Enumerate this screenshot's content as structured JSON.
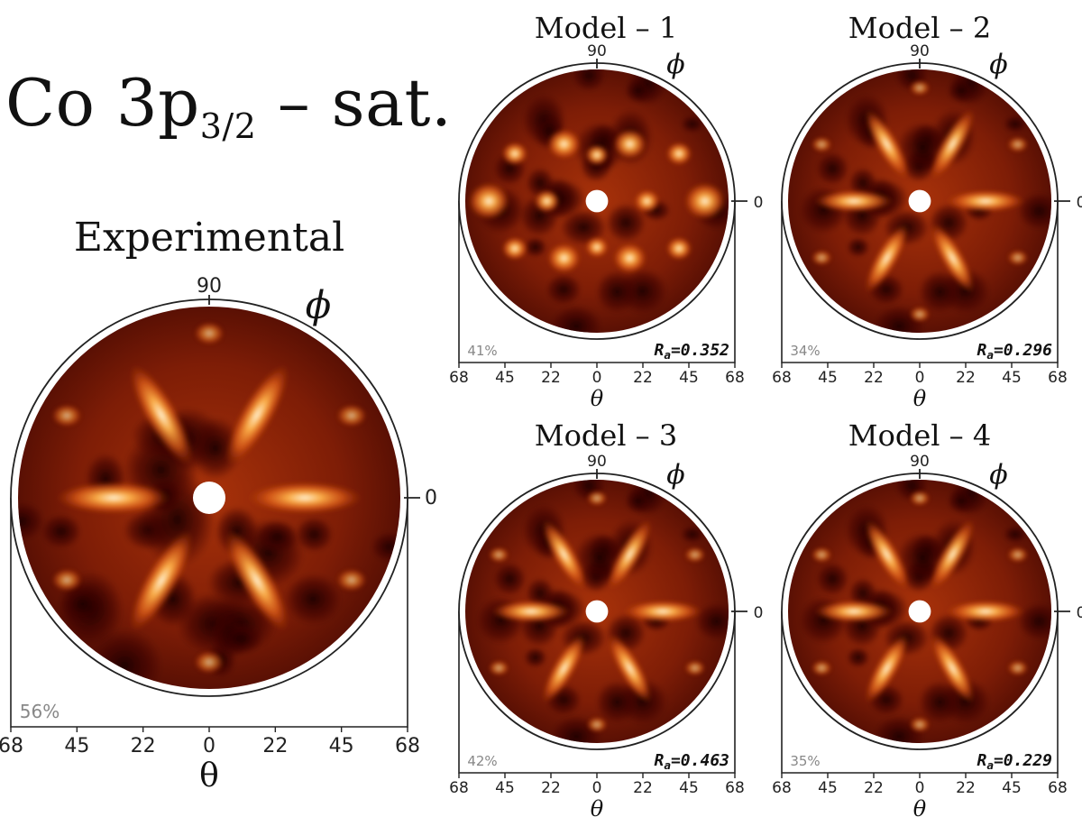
{
  "figure": {
    "title_main": "Co 3p",
    "title_sub": "3/2",
    "title_suffix": " – sat.",
    "phi_symbol": "ϕ",
    "theta_symbol": "θ",
    "angle_90": "90",
    "angle_0": "0",
    "theta_ticks": [
      "68",
      "45",
      "22",
      "0",
      "22",
      "45",
      "68"
    ],
    "colors": {
      "dark": "#2a0604",
      "mid": "#9c2a06",
      "bright": "#ff9a2a",
      "hot": "#fff6dc"
    }
  },
  "panels": [
    {
      "id": "experimental",
      "label": "Experimental",
      "percent": "56%",
      "r_label": "",
      "r_value": "",
      "pattern": "six-fold streaks"
    },
    {
      "id": "model1",
      "label": "Model – 1",
      "percent": "41%",
      "r_label": "R",
      "r_sub": "a",
      "r_value": "=0.352",
      "pattern": "spots"
    },
    {
      "id": "model2",
      "label": "Model – 2",
      "percent": "34%",
      "r_label": "R",
      "r_sub": "a",
      "r_value": "=0.296",
      "pattern": "six-fold streaks"
    },
    {
      "id": "model3",
      "label": "Model – 3",
      "percent": "42%",
      "r_label": "R",
      "r_sub": "a",
      "r_value": "=0.463",
      "pattern": "six-fold streaks"
    },
    {
      "id": "model4",
      "label": "Model – 4",
      "percent": "35%",
      "r_label": "R",
      "r_sub": "a",
      "r_value": "=0.229",
      "pattern": "six-fold streaks"
    }
  ]
}
